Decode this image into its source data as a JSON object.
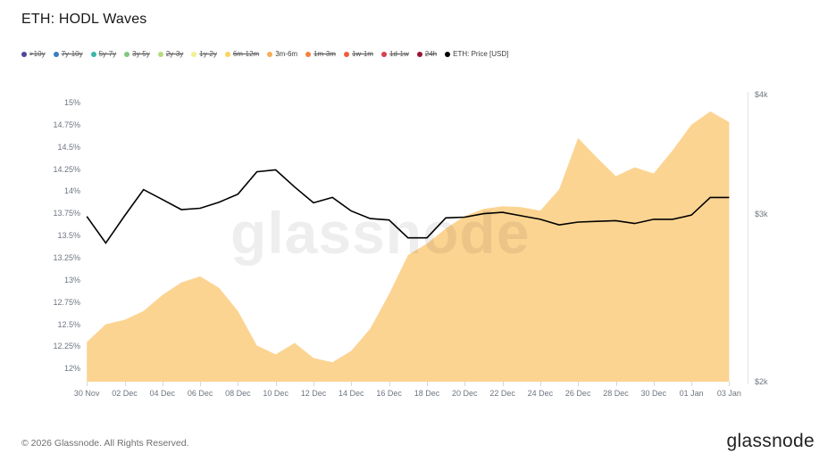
{
  "title": "ETH: HODL Waves",
  "watermark": "glassnode",
  "footer": {
    "copyright": "© 2026 Glassnode. All Rights Reserved.",
    "brand": "glassnode"
  },
  "legend": {
    "items": [
      {
        "label": ">10y",
        "color": "#4f4798",
        "active": false
      },
      {
        "label": "7y-10y",
        "color": "#3a7dc0",
        "active": false
      },
      {
        "label": "5y-7y",
        "color": "#3ab6aa",
        "active": false
      },
      {
        "label": "3y-5y",
        "color": "#82c77e",
        "active": false
      },
      {
        "label": "2y-3y",
        "color": "#b5dc7a",
        "active": false
      },
      {
        "label": "1y-2y",
        "color": "#f2ef8f",
        "active": false
      },
      {
        "label": "6m-12m",
        "color": "#fbd45c",
        "active": false
      },
      {
        "label": "3m-6m",
        "color": "#f8ab56",
        "active": true
      },
      {
        "label": "1m-3m",
        "color": "#f6813d",
        "active": false
      },
      {
        "label": "1w-1m",
        "color": "#f25c3b",
        "active": false
      },
      {
        "label": "1d-1w",
        "color": "#d6404d",
        "active": false
      },
      {
        "label": "24h",
        "color": "#9c1238",
        "active": false
      },
      {
        "label": "ETH: Price [USD]",
        "color": "#000000",
        "active": true
      }
    ]
  },
  "axes": {
    "left_tick_labels": [
      "15%",
      "14.75%",
      "14.5%",
      "14.25%",
      "14%",
      "13.75%",
      "13.5%",
      "13.25%",
      "13%",
      "12.75%",
      "12.5%",
      "12.25%",
      "12%"
    ],
    "left_tick_values": [
      15,
      14.75,
      14.5,
      14.25,
      14,
      13.75,
      13.5,
      13.25,
      13,
      12.75,
      12.5,
      12.25,
      12
    ],
    "right_tick_labels": [
      "$4k",
      "$3k",
      "$2k"
    ],
    "right_tick_values": [
      4000,
      3000,
      2000
    ],
    "x_tick_labels": [
      "30 Nov",
      "02 Dec",
      "04 Dec",
      "06 Dec",
      "08 Dec",
      "10 Dec",
      "12 Dec",
      "14 Dec",
      "16 Dec",
      "18 Dec",
      "20 Dec",
      "22 Dec",
      "24 Dec",
      "26 Dec",
      "28 Dec",
      "30 Dec",
      "01 Jan",
      "03 Jan"
    ]
  },
  "chart_data": {
    "type": "area",
    "title": "ETH: HODL Waves",
    "grid": false,
    "legend_position": "top",
    "x": [
      "30 Nov",
      "01 Dec",
      "02 Dec",
      "03 Dec",
      "04 Dec",
      "05 Dec",
      "06 Dec",
      "07 Dec",
      "08 Dec",
      "09 Dec",
      "10 Dec",
      "11 Dec",
      "12 Dec",
      "13 Dec",
      "14 Dec",
      "15 Dec",
      "16 Dec",
      "17 Dec",
      "18 Dec",
      "19 Dec",
      "20 Dec",
      "21 Dec",
      "22 Dec",
      "23 Dec",
      "24 Dec",
      "25 Dec",
      "26 Dec",
      "27 Dec",
      "28 Dec",
      "29 Dec",
      "30 Dec",
      "31 Dec",
      "01 Jan",
      "02 Jan",
      "03 Jan"
    ],
    "left_axis": {
      "unit": "% of supply",
      "scale": "linear",
      "range": [
        11.85,
        15.13
      ]
    },
    "right_axis": {
      "unit": "USD",
      "scale": "log",
      "range": [
        2000,
        4000
      ]
    },
    "series": [
      {
        "name": "3m-6m",
        "type": "area",
        "axis": "left",
        "unit": "%",
        "fill_color": "#fcd492",
        "values": [
          12.3,
          12.5,
          12.55,
          12.65,
          12.83,
          12.97,
          13.04,
          12.91,
          12.65,
          12.26,
          12.16,
          12.29,
          12.12,
          12.07,
          12.2,
          12.45,
          12.84,
          13.28,
          13.41,
          13.58,
          13.72,
          13.8,
          13.83,
          13.82,
          13.78,
          14.02,
          14.6,
          14.38,
          14.17,
          14.27,
          14.2,
          14.46,
          14.75,
          14.9,
          14.78
        ]
      },
      {
        "name": "ETH: Price [USD]",
        "type": "line",
        "axis": "right",
        "unit": "USD",
        "color": "#000000",
        "values": [
          2980,
          2795,
          2985,
          3180,
          3105,
          3030,
          3040,
          3085,
          3145,
          3320,
          3335,
          3200,
          3080,
          3120,
          3020,
          2965,
          2955,
          2830,
          2830,
          2970,
          2975,
          3000,
          3010,
          2985,
          2960,
          2920,
          2940,
          2945,
          2950,
          2930,
          2960,
          2960,
          2990,
          3120,
          3120
        ]
      }
    ]
  }
}
